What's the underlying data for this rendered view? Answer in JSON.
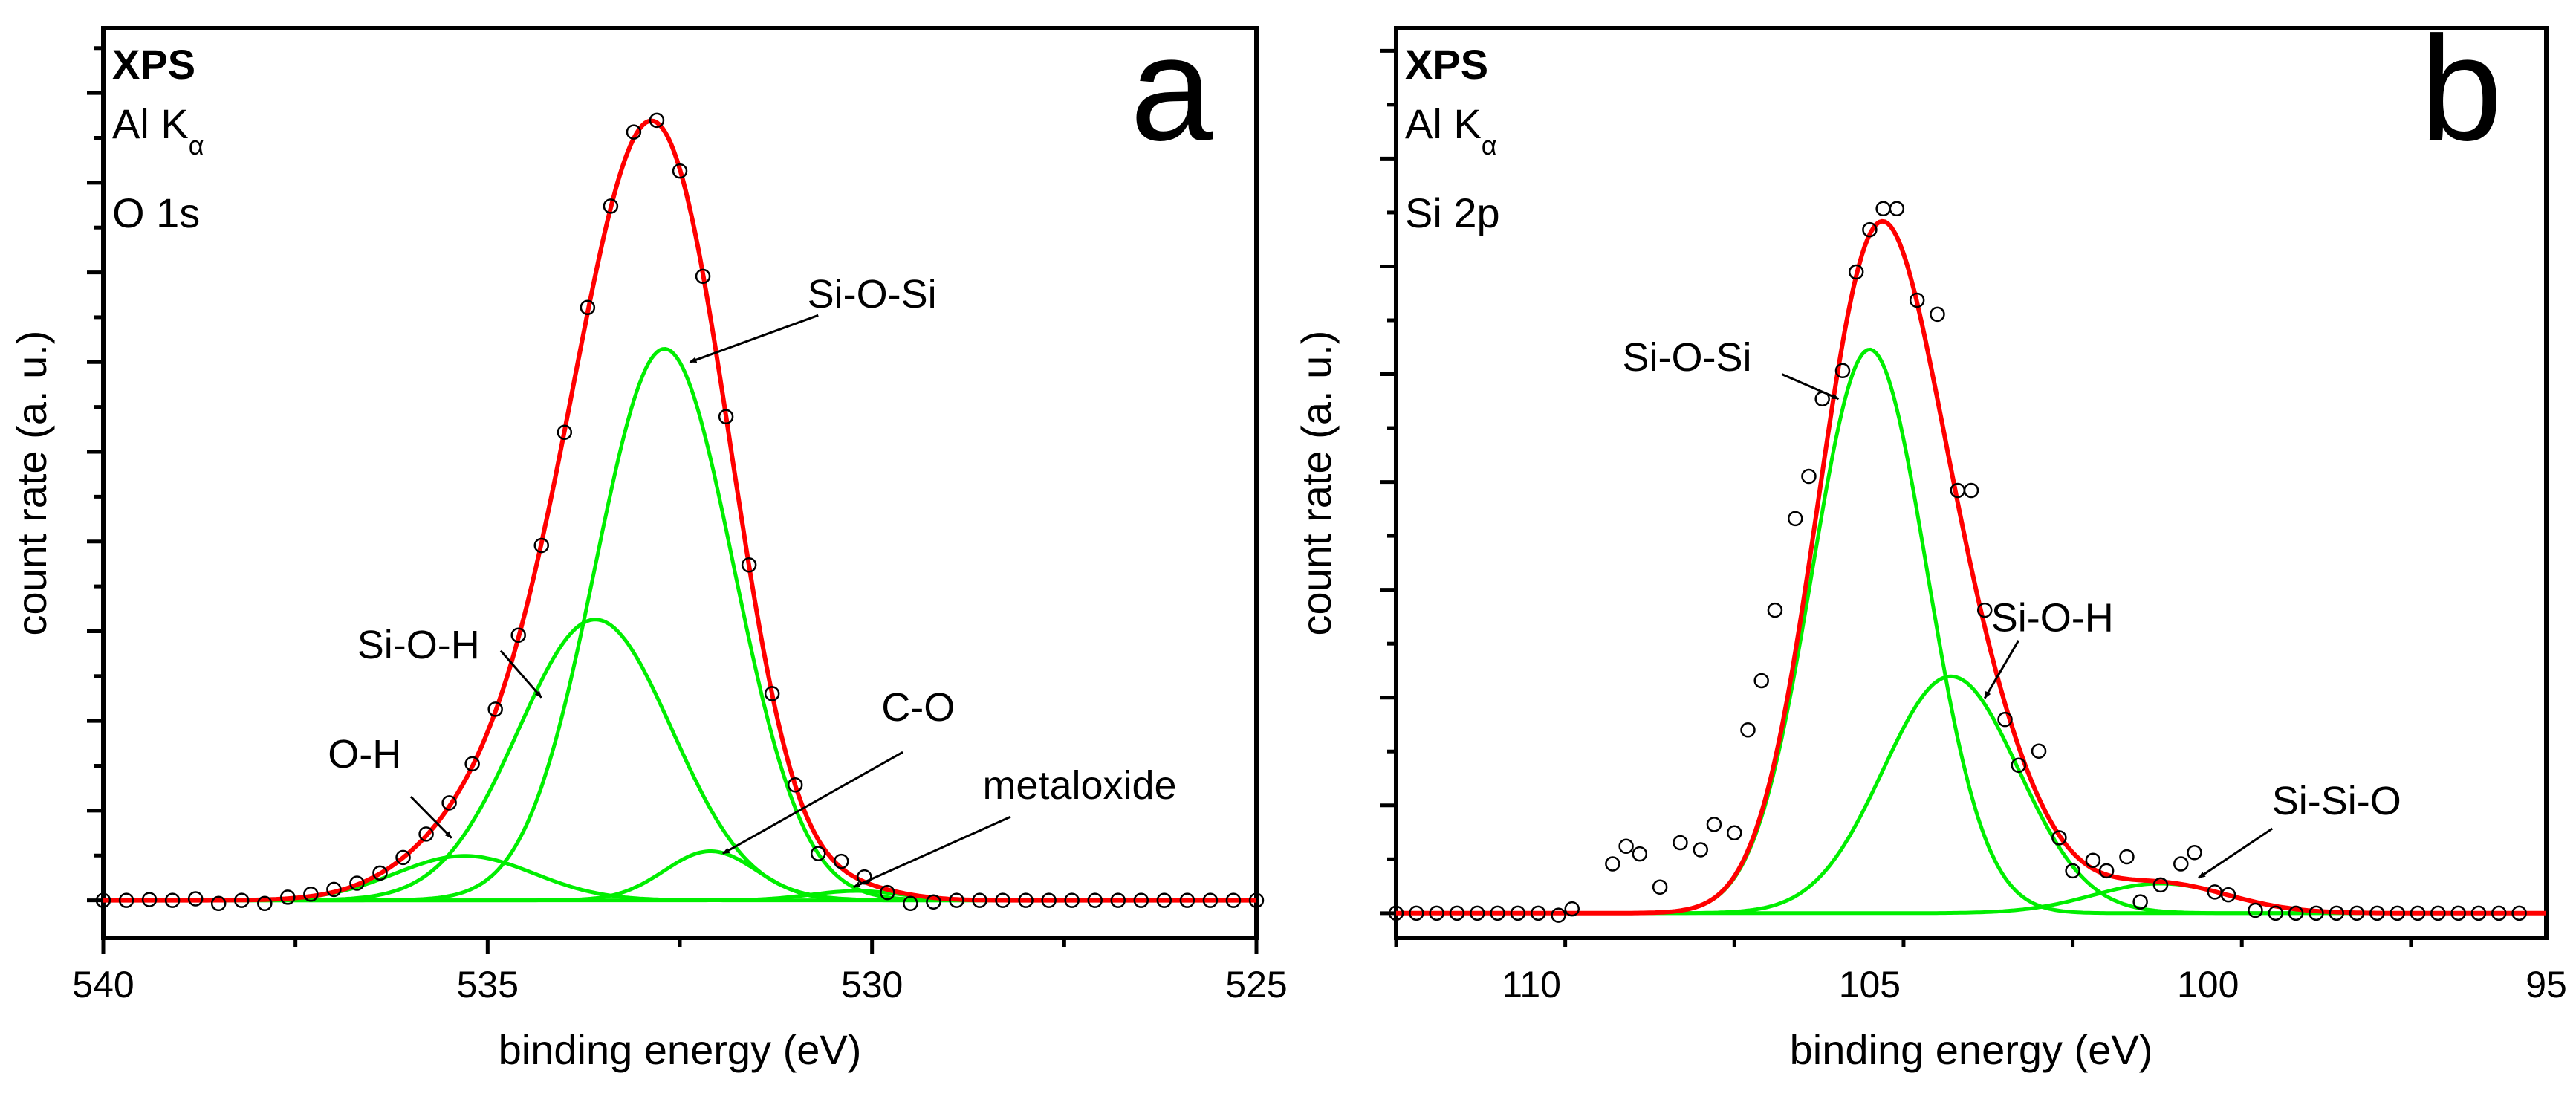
{
  "colors": {
    "fit": "#ff0000",
    "component": "#00ee00",
    "points": "#000000"
  },
  "chart_data": [
    {
      "type": "line",
      "panel_letter": "a",
      "info": {
        "method": "XPS",
        "source": "Al K",
        "source_sub": "α",
        "region": "O 1s"
      },
      "xlabel": "binding energy (eV)",
      "ylabel": "count rate (a. u.)",
      "xlim": [
        540,
        525
      ],
      "ylim": [
        -0.048,
        1.118
      ],
      "xticks": [
        540,
        535,
        530,
        525
      ],
      "xtick_labels": [
        "540",
        "535",
        "530",
        "525"
      ],
      "components": [
        {
          "name": "Si-O-Si",
          "center": 532.7,
          "height": 0.707,
          "sigma": 0.9
        },
        {
          "name": "Si-O-H",
          "center": 533.6,
          "height": 0.36,
          "sigma": 1.0
        },
        {
          "name": "O-H",
          "center": 535.3,
          "height": 0.057,
          "sigma": 0.9
        },
        {
          "name": "C-O",
          "center": 532.1,
          "height": 0.063,
          "sigma": 0.6
        },
        {
          "name": "metaloxide",
          "center": 530.2,
          "height": 0.012,
          "sigma": 0.6
        }
      ],
      "annotations": [
        {
          "text": "Si-O-Si",
          "tx": 530.0,
          "ty": 0.76,
          "from": [
            530.7,
            0.75
          ],
          "to": [
            532.37,
            0.69
          ]
        },
        {
          "text": "Si-O-H",
          "tx": 535.9,
          "ty": 0.31,
          "from": [
            534.83,
            0.32
          ],
          "to": [
            534.3,
            0.26
          ]
        },
        {
          "text": "O-H",
          "tx": 536.6,
          "ty": 0.17,
          "from": [
            536.0,
            0.133
          ],
          "to": [
            535.47,
            0.08
          ]
        },
        {
          "text": "C-O",
          "tx": 529.4,
          "ty": 0.23,
          "from": [
            529.6,
            0.19
          ],
          "to": [
            531.94,
            0.06
          ]
        },
        {
          "text": "metaloxide",
          "tx": 527.3,
          "ty": 0.13,
          "from": [
            528.2,
            0.107
          ],
          "to": [
            530.24,
            0.017
          ]
        }
      ],
      "points": [
        [
          540,
          0
        ],
        [
          539.7,
          0
        ],
        [
          539.4,
          0.001
        ],
        [
          539.1,
          0
        ],
        [
          538.8,
          0.002
        ],
        [
          538.5,
          -0.004
        ],
        [
          538.2,
          0
        ],
        [
          537.9,
          -0.004
        ],
        [
          537.6,
          0.004
        ],
        [
          537.3,
          0.008
        ],
        [
          537.0,
          0.014
        ],
        [
          536.7,
          0.022
        ],
        [
          536.4,
          0.035
        ],
        [
          536.1,
          0.055
        ],
        [
          535.8,
          0.085
        ],
        [
          535.5,
          0.125
        ],
        [
          535.2,
          0.175
        ],
        [
          534.9,
          0.245
        ],
        [
          534.6,
          0.34
        ],
        [
          534.3,
          0.455
        ],
        [
          534.0,
          0.6
        ],
        [
          533.7,
          0.76
        ],
        [
          533.4,
          0.89
        ],
        [
          533.1,
          0.985
        ],
        [
          532.8,
          1.0
        ],
        [
          532.5,
          0.935
        ],
        [
          532.2,
          0.8
        ],
        [
          531.9,
          0.62
        ],
        [
          531.6,
          0.43
        ],
        [
          531.3,
          0.265
        ],
        [
          531.0,
          0.148
        ],
        [
          530.7,
          0.06
        ],
        [
          530.4,
          0.05
        ],
        [
          530.1,
          0.03
        ],
        [
          529.8,
          0.01
        ],
        [
          529.5,
          -0.004
        ],
        [
          529.2,
          -0.002
        ],
        [
          528.9,
          0
        ],
        [
          528.6,
          0
        ],
        [
          528.3,
          0
        ],
        [
          528.0,
          0
        ],
        [
          527.7,
          0
        ],
        [
          527.4,
          0
        ],
        [
          527.1,
          0
        ],
        [
          526.8,
          0
        ],
        [
          526.5,
          0
        ],
        [
          526.2,
          0
        ],
        [
          525.9,
          0
        ],
        [
          525.6,
          0
        ],
        [
          525.3,
          0
        ],
        [
          525.0,
          0
        ]
      ]
    },
    {
      "type": "line",
      "panel_letter": "b",
      "info": {
        "method": "XPS",
        "source": "Al K",
        "source_sub": "α",
        "region": "Si 2p"
      },
      "xlabel": "binding energy (eV)",
      "ylabel": "count rate (a. u.)",
      "xlim": [
        112,
        95
      ],
      "ylim": [
        -0.035,
        1.256
      ],
      "xticks": [
        110,
        105,
        100,
        95
      ],
      "xtick_labels": [
        "110",
        "105",
        "100",
        "95"
      ],
      "components": [
        {
          "name": "Si-O-Si",
          "center": 105.0,
          "height": 0.8,
          "sigma": 0.85
        },
        {
          "name": "Si-O-H",
          "center": 103.8,
          "height": 0.336,
          "sigma": 1.0
        },
        {
          "name": "Si-Si-O",
          "center": 100.7,
          "height": 0.042,
          "sigma": 1.0
        }
      ],
      "annotations": [
        {
          "text": "Si-O-Si",
          "tx": 107.7,
          "ty": 0.77,
          "from": [
            106.3,
            0.765
          ],
          "to": [
            105.46,
            0.73
          ]
        },
        {
          "text": "Si-O-H",
          "tx": 102.3,
          "ty": 0.4,
          "from": [
            102.8,
            0.387
          ],
          "to": [
            103.3,
            0.305
          ]
        },
        {
          "text": "Si-Si-O",
          "tx": 98.1,
          "ty": 0.14,
          "from": [
            99.05,
            0.12
          ],
          "to": [
            100.14,
            0.05
          ]
        }
      ],
      "points": [
        [
          112,
          0
        ],
        [
          111.7,
          0
        ],
        [
          111.4,
          0
        ],
        [
          111.1,
          0
        ],
        [
          110.8,
          0
        ],
        [
          110.5,
          0
        ],
        [
          110.2,
          0
        ],
        [
          109.9,
          0
        ],
        [
          109.6,
          -0.003
        ],
        [
          109.4,
          0.006
        ],
        [
          108.8,
          0.07
        ],
        [
          108.6,
          0.095
        ],
        [
          108.4,
          0.084
        ],
        [
          108.1,
          0.037
        ],
        [
          107.8,
          0.1
        ],
        [
          107.5,
          0.09
        ],
        [
          107.3,
          0.126
        ],
        [
          107.0,
          0.114
        ],
        [
          106.8,
          0.26
        ],
        [
          106.6,
          0.33
        ],
        [
          106.4,
          0.43
        ],
        [
          106.1,
          0.56
        ],
        [
          105.9,
          0.62
        ],
        [
          105.7,
          0.73
        ],
        [
          105.4,
          0.77
        ],
        [
          105.2,
          0.91
        ],
        [
          105.0,
          0.97
        ],
        [
          104.8,
          1.0
        ],
        [
          104.6,
          1.0
        ],
        [
          104.3,
          0.87
        ],
        [
          104.0,
          0.85
        ],
        [
          103.7,
          0.6
        ],
        [
          103.5,
          0.6
        ],
        [
          103.3,
          0.43
        ],
        [
          103.0,
          0.275
        ],
        [
          102.8,
          0.21
        ],
        [
          102.5,
          0.23
        ],
        [
          102.2,
          0.107
        ],
        [
          102.0,
          0.06
        ],
        [
          101.7,
          0.075
        ],
        [
          101.5,
          0.06
        ],
        [
          101.2,
          0.08
        ],
        [
          101.0,
          0.016
        ],
        [
          100.7,
          0.04
        ],
        [
          100.4,
          0.07
        ],
        [
          100.2,
          0.086
        ],
        [
          99.9,
          0.03
        ],
        [
          99.7,
          0.026
        ],
        [
          99.3,
          0.004
        ],
        [
          99.0,
          0
        ],
        [
          98.7,
          0
        ],
        [
          98.4,
          0
        ],
        [
          98.1,
          0
        ],
        [
          97.8,
          0
        ],
        [
          97.5,
          0
        ],
        [
          97.2,
          0
        ],
        [
          96.9,
          0
        ],
        [
          96.6,
          0
        ],
        [
          96.3,
          0
        ],
        [
          96.0,
          0
        ],
        [
          95.7,
          0
        ],
        [
          95.4,
          0
        ]
      ]
    }
  ]
}
